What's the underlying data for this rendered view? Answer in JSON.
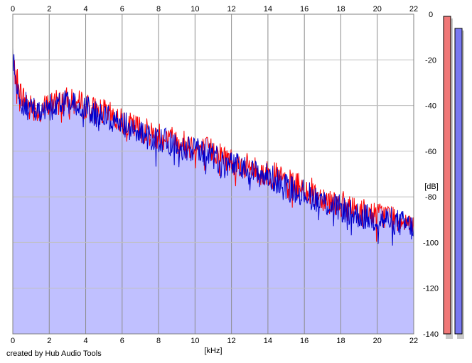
{
  "footer": "created by Hub Audio Tools",
  "chart_data": {
    "type": "area",
    "title": "",
    "xlabel": "[kHz]",
    "ylabel": "[dB]",
    "xlim": [
      0,
      22
    ],
    "ylim": [
      -140,
      0
    ],
    "x_ticks": [
      0,
      2,
      4,
      6,
      8,
      10,
      12,
      14,
      16,
      18,
      20,
      22
    ],
    "y_ticks": [
      0,
      -20,
      -40,
      -60,
      -80,
      -100,
      -120,
      -140
    ],
    "x_tick_labels": [
      "0",
      "2",
      "4",
      "6",
      "8",
      "10",
      "12",
      "14",
      "16",
      "18",
      "20",
      "22"
    ],
    "y_tick_labels": [
      "0",
      "-20",
      "-40",
      "-60",
      "-80",
      "-100",
      "-120",
      "-140"
    ],
    "grid": true,
    "legend": "none",
    "fill_color": "#c0c0ff",
    "series": [
      {
        "color": "#ff0000",
        "x": [
          0,
          0.5,
          1,
          1.5,
          2,
          2.5,
          3,
          3.5,
          4,
          4.5,
          5,
          5.5,
          6,
          6.5,
          7,
          7.5,
          8,
          8.5,
          9,
          9.5,
          10,
          10.5,
          11,
          11.5,
          12,
          12.5,
          13,
          13.5,
          14,
          14.5,
          15,
          15.5,
          16,
          16.5,
          17,
          17.5,
          18,
          18.5,
          19,
          19.5,
          20,
          20.5,
          21,
          21.5,
          22
        ],
        "values": [
          -22,
          -36,
          -40,
          -42,
          -40,
          -38,
          -38,
          -39,
          -40,
          -42,
          -43,
          -45,
          -47,
          -49,
          -50,
          -52,
          -53,
          -54,
          -55,
          -57,
          -58,
          -59,
          -60,
          -62,
          -64,
          -66,
          -67,
          -69,
          -70,
          -71,
          -73,
          -75,
          -76,
          -78,
          -80,
          -82,
          -83,
          -85,
          -86,
          -87,
          -88,
          -88,
          -89,
          -90,
          -91
        ]
      },
      {
        "color": "#0000cc",
        "x": [
          0,
          0.5,
          1,
          1.5,
          2,
          2.5,
          3,
          3.5,
          4,
          4.5,
          5,
          5.5,
          6,
          6.5,
          7,
          7.5,
          8,
          8.5,
          9,
          9.5,
          10,
          10.5,
          11,
          11.5,
          12,
          12.5,
          13,
          13.5,
          14,
          14.5,
          15,
          15.5,
          16,
          16.5,
          17,
          17.5,
          18,
          18.5,
          19,
          19.5,
          20,
          20.5,
          21,
          21.5,
          22
        ],
        "values": [
          -20,
          -38,
          -42,
          -43,
          -41,
          -39,
          -39,
          -40,
          -41,
          -44,
          -45,
          -46,
          -48,
          -50,
          -52,
          -54,
          -55,
          -56,
          -57,
          -59,
          -60,
          -61,
          -62,
          -66,
          -66,
          -67,
          -69,
          -70,
          -71,
          -73,
          -75,
          -77,
          -78,
          -80,
          -82,
          -84,
          -85,
          -87,
          -88,
          -89,
          -90,
          -90,
          -91,
          -92,
          -94
        ]
      }
    ],
    "level_meters": [
      {
        "color": "#f07878",
        "level": 1.0
      },
      {
        "color": "#7878f0",
        "level": 0.98
      }
    ]
  }
}
